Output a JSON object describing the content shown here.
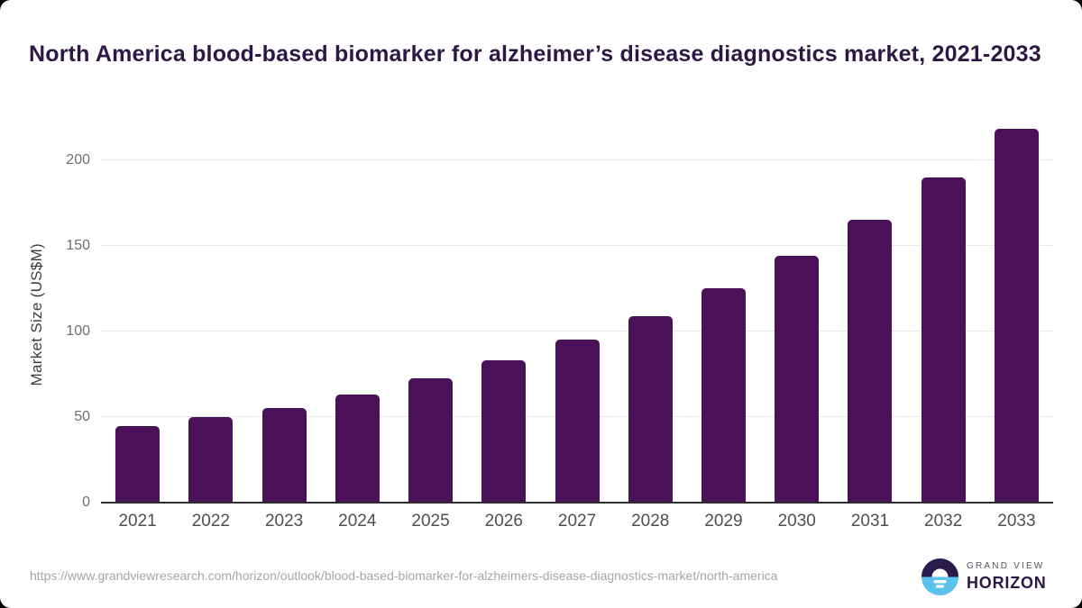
{
  "chart_data": {
    "type": "bar",
    "title": "North America blood-based biomarker for alzheimer’s disease diagnostics market, 2021-2033",
    "categories": [
      "2021",
      "2022",
      "2023",
      "2024",
      "2025",
      "2026",
      "2027",
      "2028",
      "2029",
      "2030",
      "2031",
      "2032",
      "2033"
    ],
    "values": [
      45,
      50,
      55.5,
      63,
      72.5,
      83,
      95.5,
      109,
      125.5,
      144,
      165.5,
      190,
      218.5
    ],
    "xlabel": "",
    "ylabel": "Market Size (US$M)",
    "yticks": [
      0,
      50,
      100,
      150,
      200
    ],
    "ylim": [
      0,
      220
    ],
    "grid": "horizontal",
    "legend": "none",
    "bar_color": "#4a1158"
  },
  "footer": {
    "source_url": "https://www.grandviewresearch.com/horizon/outlook/blood-based-biomarker-for-alzheimers-disease-diagnostics-market/north-america",
    "logo": {
      "brand_line1": "GRAND VIEW",
      "brand_line2": "HORIZON"
    }
  },
  "colors": {
    "bar": "#4a1158",
    "title_text": "#2e1745",
    "gridline": "#e9e9e9",
    "axis_line": "#2e2e2e",
    "ytick_text": "#6f6f6f",
    "xtick_text": "#4f4f4f",
    "ylabel_text": "#3d3d3d",
    "url_text": "#a6a6a6",
    "logo_navy": "#2b1b4c",
    "logo_blue": "#5cc3ef",
    "logo_grand_view_text": "#56525e",
    "card_background": "#ffffff"
  }
}
